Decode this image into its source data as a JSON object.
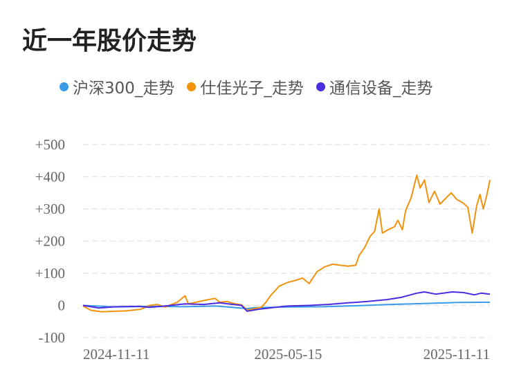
{
  "title": "近一年股价走势",
  "chart_data": {
    "type": "line",
    "title": "近一年股价走势",
    "xlabel": "",
    "ylabel": "",
    "x_ticks": [
      "2024-11-11",
      "2025-05-15",
      "2025-11-11"
    ],
    "y_ticks": [
      "+500",
      "+400",
      "+300",
      "+200",
      "+100",
      "0",
      "-100"
    ],
    "ylim": [
      -100,
      500
    ],
    "x_range": [
      "2024-11-11",
      "2025-11-13"
    ],
    "grid": "horizontal dashed",
    "legend_position": "top",
    "series": [
      {
        "name": "沪深300_走势",
        "color": "#3a9ae8",
        "points": [
          [
            "2024-11-11",
            0
          ],
          [
            "2024-12-11",
            -5
          ],
          [
            "2025-01-10",
            -3
          ],
          [
            "2025-02-11",
            -4
          ],
          [
            "2025-03-11",
            -2
          ],
          [
            "2025-04-08",
            -10
          ],
          [
            "2025-04-15",
            -7
          ],
          [
            "2025-05-15",
            -5
          ],
          [
            "2025-06-16",
            -4
          ],
          [
            "2025-07-15",
            -1
          ],
          [
            "2025-08-15",
            3
          ],
          [
            "2025-09-15",
            6
          ],
          [
            "2025-10-15",
            9
          ],
          [
            "2025-11-13",
            10
          ]
        ]
      },
      {
        "name": "仕佳光子_走势",
        "color": "#f0920c",
        "points": [
          [
            "2024-11-11",
            -2
          ],
          [
            "2024-11-18",
            -15
          ],
          [
            "2024-11-28",
            -20
          ],
          [
            "2024-12-10",
            -18
          ],
          [
            "2024-12-20",
            -17
          ],
          [
            "2025-01-02",
            -12
          ],
          [
            "2025-01-10",
            0
          ],
          [
            "2025-01-17",
            3
          ],
          [
            "2025-01-24",
            -5
          ],
          [
            "2025-02-04",
            10
          ],
          [
            "2025-02-11",
            30
          ],
          [
            "2025-02-14",
            5
          ],
          [
            "2025-02-24",
            12
          ],
          [
            "2025-03-04",
            18
          ],
          [
            "2025-03-10",
            22
          ],
          [
            "2025-03-14",
            10
          ],
          [
            "2025-03-21",
            12
          ],
          [
            "2025-03-28",
            5
          ],
          [
            "2025-04-03",
            2
          ],
          [
            "2025-04-08",
            -15
          ],
          [
            "2025-04-15",
            -10
          ],
          [
            "2025-04-21",
            -5
          ],
          [
            "2025-04-25",
            10
          ],
          [
            "2025-04-29",
            30
          ],
          [
            "2025-05-07",
            60
          ],
          [
            "2025-05-15",
            72
          ],
          [
            "2025-05-22",
            78
          ],
          [
            "2025-05-28",
            85
          ],
          [
            "2025-06-03",
            68
          ],
          [
            "2025-06-10",
            105
          ],
          [
            "2025-06-17",
            120
          ],
          [
            "2025-06-24",
            128
          ],
          [
            "2025-07-01",
            125
          ],
          [
            "2025-07-08",
            122
          ],
          [
            "2025-07-15",
            125
          ],
          [
            "2025-07-18",
            155
          ],
          [
            "2025-07-23",
            180
          ],
          [
            "2025-07-28",
            215
          ],
          [
            "2025-08-01",
            230
          ],
          [
            "2025-08-05",
            300
          ],
          [
            "2025-08-08",
            225
          ],
          [
            "2025-08-13",
            235
          ],
          [
            "2025-08-19",
            245
          ],
          [
            "2025-08-22",
            265
          ],
          [
            "2025-08-26",
            235
          ],
          [
            "2025-08-29",
            295
          ],
          [
            "2025-09-03",
            335
          ],
          [
            "2025-09-08",
            405
          ],
          [
            "2025-09-11",
            365
          ],
          [
            "2025-09-15",
            390
          ],
          [
            "2025-09-19",
            320
          ],
          [
            "2025-09-24",
            355
          ],
          [
            "2025-09-29",
            315
          ],
          [
            "2025-10-09",
            350
          ],
          [
            "2025-10-14",
            330
          ],
          [
            "2025-10-20",
            318
          ],
          [
            "2025-10-24",
            305
          ],
          [
            "2025-10-28",
            225
          ],
          [
            "2025-11-01",
            310
          ],
          [
            "2025-11-04",
            345
          ],
          [
            "2025-11-07",
            300
          ],
          [
            "2025-11-10",
            340
          ],
          [
            "2025-11-13",
            390
          ]
        ]
      },
      {
        "name": "通信设备_走势",
        "color": "#4a2be0",
        "points": [
          [
            "2024-11-11",
            0
          ],
          [
            "2024-11-25",
            -8
          ],
          [
            "2024-12-11",
            -4
          ],
          [
            "2024-12-31",
            -3
          ],
          [
            "2025-01-10",
            -6
          ],
          [
            "2025-01-24",
            -2
          ],
          [
            "2025-02-11",
            5
          ],
          [
            "2025-02-28",
            3
          ],
          [
            "2025-03-14",
            8
          ],
          [
            "2025-04-03",
            0
          ],
          [
            "2025-04-08",
            -18
          ],
          [
            "2025-04-18",
            -12
          ],
          [
            "2025-05-06",
            -5
          ],
          [
            "2025-05-15",
            -2
          ],
          [
            "2025-06-03",
            0
          ],
          [
            "2025-06-20",
            3
          ],
          [
            "2025-07-08",
            8
          ],
          [
            "2025-07-25",
            12
          ],
          [
            "2025-08-12",
            18
          ],
          [
            "2025-08-25",
            25
          ],
          [
            "2025-09-08",
            38
          ],
          [
            "2025-09-15",
            42
          ],
          [
            "2025-09-25",
            35
          ],
          [
            "2025-10-10",
            42
          ],
          [
            "2025-10-20",
            40
          ],
          [
            "2025-10-30",
            33
          ],
          [
            "2025-11-05",
            38
          ],
          [
            "2025-11-13",
            35
          ]
        ]
      }
    ]
  }
}
